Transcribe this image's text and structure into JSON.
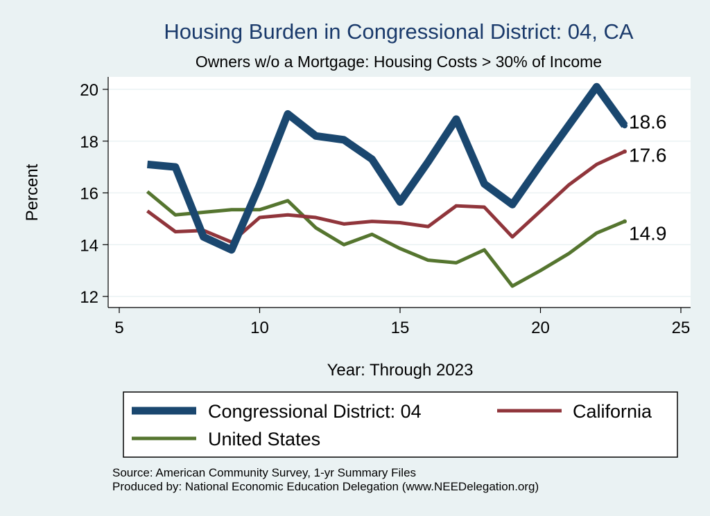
{
  "chart_data": {
    "type": "line",
    "title": "Housing Burden in Congressional District:  04, CA",
    "subtitle": "Owners w/o a Mortgage: Housing Costs > 30% of Income",
    "xlabel": "Year: Through 2023",
    "ylabel": "Percent",
    "xlim": [
      4.8,
      25.3
    ],
    "ylim": [
      11.6,
      20.4
    ],
    "xticks": [
      5,
      10,
      15,
      20,
      25
    ],
    "yticks": [
      12,
      14,
      16,
      18,
      20
    ],
    "grid": "horizontal",
    "x": [
      6,
      7,
      8,
      9,
      10,
      11,
      12,
      13,
      14,
      15,
      16,
      17,
      18,
      19,
      20,
      21,
      22,
      23
    ],
    "series": [
      {
        "name": "Congressional District:  04",
        "color": "#1a476f",
        "values": [
          17.1,
          17.0,
          14.3,
          13.8,
          16.3,
          19.05,
          18.2,
          18.05,
          17.3,
          15.65,
          17.2,
          18.85,
          16.35,
          15.55,
          17.1,
          18.6,
          20.1,
          18.6
        ],
        "end_label": "18.6"
      },
      {
        "name": "California",
        "color": "#90353b",
        "values": [
          15.3,
          14.5,
          14.55,
          14.1,
          15.05,
          15.15,
          15.05,
          14.8,
          14.9,
          14.85,
          14.7,
          15.5,
          15.45,
          14.3,
          15.3,
          16.3,
          17.1,
          17.6
        ],
        "end_label": "17.6"
      },
      {
        "name": "United States",
        "color": "#55752f",
        "values": [
          16.05,
          15.15,
          15.25,
          15.35,
          15.35,
          15.7,
          14.65,
          14.0,
          14.4,
          13.85,
          13.4,
          13.3,
          13.8,
          12.4,
          13.0,
          13.65,
          14.45,
          14.9
        ],
        "end_label": "14.9"
      }
    ],
    "legend": {
      "placement": "bottom",
      "entries": [
        "Congressional District:  04",
        "California",
        "United States"
      ]
    },
    "notes": [
      "Source: American Community Survey, 1-yr Summary Files",
      "Produced by: National Economic Education Delegation (www.NEEDelegation.org)"
    ]
  }
}
